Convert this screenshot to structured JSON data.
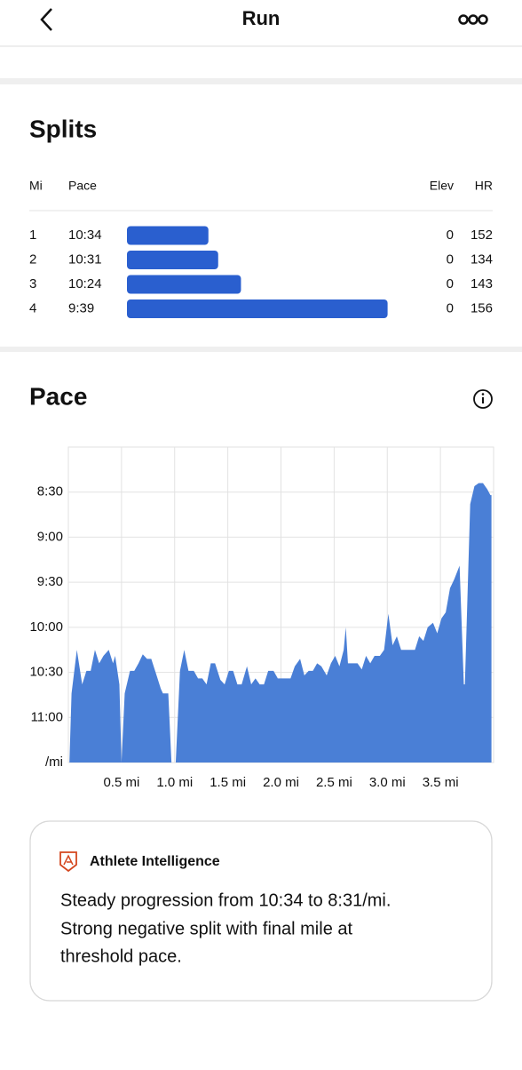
{
  "header": {
    "title": "Run"
  },
  "splits": {
    "title": "Splits",
    "columns": [
      "Mi",
      "Pace",
      "Elev",
      "HR"
    ],
    "rows": [
      {
        "mi": "1",
        "pace": "10:34",
        "elev": 0,
        "hr": 152
      },
      {
        "mi": "2",
        "pace": "10:31",
        "elev": 0,
        "hr": 134
      },
      {
        "mi": "3",
        "pace": "10:24",
        "elev": 0,
        "hr": 143
      },
      {
        "mi": "4",
        "pace": "9:39",
        "elev": 0,
        "hr": 156
      }
    ]
  },
  "pace": {
    "title": "Pace",
    "chart_data": {
      "type": "area",
      "color": "#4a7fd6",
      "grid": true,
      "y_reversed": true,
      "xlim": [
        0,
        4
      ],
      "ylim": [
        480,
        690
      ],
      "xticks": [
        {
          "value": 0.5,
          "label": "0.5 mi"
        },
        {
          "value": 1,
          "label": "1.0 mi"
        },
        {
          "value": 1.5,
          "label": "1.5 mi"
        },
        {
          "value": 2,
          "label": "2.0 mi"
        },
        {
          "value": 2.5,
          "label": "2.5 mi"
        },
        {
          "value": 3,
          "label": "3.0 mi"
        },
        {
          "value": 3.5,
          "label": "3.5 mi"
        }
      ],
      "yticks": [
        {
          "value": 510,
          "label": "8:30"
        },
        {
          "value": 540,
          "label": "9:00"
        },
        {
          "value": 570,
          "label": "9:30"
        },
        {
          "value": 600,
          "label": "10:00"
        },
        {
          "value": 630,
          "label": "10:30"
        },
        {
          "value": 660,
          "label": "11:00"
        },
        {
          "value": 690,
          "label": "/mi"
        }
      ],
      "x": [
        0.01,
        0.03,
        0.08,
        0.13,
        0.17,
        0.21,
        0.25,
        0.29,
        0.33,
        0.38,
        0.42,
        0.44,
        0.48,
        0.5,
        0.53,
        0.58,
        0.62,
        0.66,
        0.7,
        0.74,
        0.78,
        0.83,
        0.87,
        0.89,
        0.94,
        0.97,
        1.01,
        1.05,
        1.09,
        1.13,
        1.18,
        1.22,
        1.26,
        1.3,
        1.34,
        1.38,
        1.43,
        1.47,
        1.51,
        1.55,
        1.59,
        1.63,
        1.68,
        1.72,
        1.76,
        1.8,
        1.84,
        1.88,
        1.93,
        1.97,
        2.01,
        2.05,
        2.09,
        2.13,
        2.18,
        2.22,
        2.26,
        2.3,
        2.34,
        2.38,
        2.43,
        2.47,
        2.51,
        2.55,
        2.59,
        2.61,
        2.63,
        2.68,
        2.72,
        2.76,
        2.8,
        2.84,
        2.88,
        2.93,
        2.97,
        3.01,
        3.05,
        3.09,
        3.13,
        3.18,
        3.22,
        3.26,
        3.3,
        3.34,
        3.38,
        3.43,
        3.47,
        3.51,
        3.55,
        3.59,
        3.63,
        3.68,
        3.72,
        3.73,
        3.78,
        3.82,
        3.86,
        3.9,
        3.94,
        3.97,
        3.98
      ],
      "values": [
        690,
        644,
        615,
        638,
        629,
        629,
        615,
        624,
        619,
        615,
        624,
        619,
        638,
        690,
        644,
        629,
        629,
        624,
        618,
        621,
        621,
        632,
        641,
        644,
        644,
        690,
        690,
        629,
        615,
        629,
        629,
        634,
        634,
        638,
        624,
        624,
        635,
        638,
        629,
        629,
        638,
        638,
        626,
        638,
        634,
        638,
        638,
        629,
        629,
        634,
        634,
        634,
        634,
        626,
        621,
        632,
        629,
        629,
        624,
        626,
        632,
        624,
        619,
        626,
        615,
        600,
        624,
        624,
        624,
        628,
        619,
        624,
        619,
        619,
        615,
        591,
        612,
        606,
        615,
        615,
        615,
        615,
        606,
        609,
        600,
        597,
        604,
        594,
        590,
        574,
        568,
        559,
        638,
        638,
        518,
        506,
        504,
        504,
        508,
        512,
        512
      ]
    }
  },
  "insight": {
    "title": "Athlete Intelligence",
    "lines": [
      "Steady progression from 10:34 to 8:31/mi.",
      "Strong negative split with final mile at",
      "threshold pace."
    ]
  }
}
